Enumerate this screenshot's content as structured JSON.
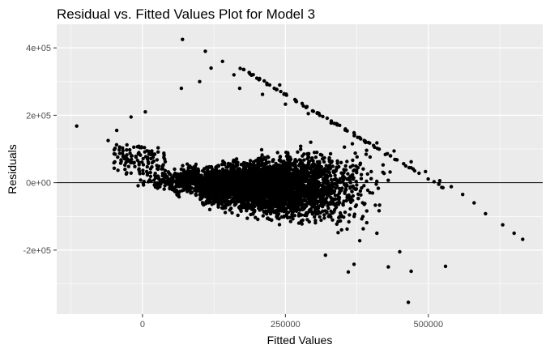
{
  "chart_data": {
    "type": "scatter",
    "title": "Residual vs. Fitted Values Plot for Model 3",
    "xlabel": "Fitted Values",
    "ylabel": "Residuals",
    "xlim": [
      -150000,
      700000
    ],
    "ylim": [
      -390000,
      470000
    ],
    "x_ticks": [
      0,
      250000,
      500000
    ],
    "x_tick_labels": [
      "0",
      "250000",
      "500000"
    ],
    "y_ticks": [
      -200000,
      0,
      200000,
      400000
    ],
    "y_tick_labels": [
      "-2e+05",
      "0e+00",
      "2e+05",
      "4e+05"
    ],
    "reference_line": {
      "y": 0
    },
    "grid": true,
    "background": "#ebebeb",
    "point_color": "#000000",
    "boundary_points": [
      [
        170000,
        280000
      ],
      [
        210000,
        262000
      ],
      [
        250000,
        233000
      ],
      [
        290000,
        205000
      ],
      [
        330000,
        177000
      ],
      [
        370000,
        148000
      ],
      [
        410000,
        118000
      ],
      [
        440000,
        94000
      ],
      [
        470000,
        62000
      ],
      [
        495000,
        33000
      ],
      [
        520000,
        6000
      ],
      [
        540000,
        -12000
      ],
      [
        560000,
        -35000
      ],
      [
        580000,
        -60000
      ],
      [
        600000,
        -92000
      ],
      [
        630000,
        -125000
      ],
      [
        650000,
        -150000
      ],
      [
        665000,
        -168000
      ]
    ],
    "extreme_points": [
      [
        -115000,
        168000
      ],
      [
        -60000,
        125000
      ],
      [
        -45000,
        155000
      ],
      [
        -20000,
        195000
      ],
      [
        5000,
        210000
      ],
      [
        70000,
        425000
      ],
      [
        68000,
        280000
      ],
      [
        110000,
        390000
      ],
      [
        140000,
        360000
      ],
      [
        120000,
        340000
      ],
      [
        160000,
        320000
      ],
      [
        200000,
        310000
      ],
      [
        240000,
        290000
      ],
      [
        320000,
        -215000
      ],
      [
        370000,
        -242000
      ],
      [
        360000,
        -265000
      ],
      [
        430000,
        -250000
      ],
      [
        450000,
        -205000
      ],
      [
        470000,
        -263000
      ],
      [
        530000,
        -248000
      ],
      [
        465000,
        -355000
      ],
      [
        380000,
        -172000
      ],
      [
        410000,
        -150000
      ],
      [
        100000,
        300000
      ]
    ],
    "cloud": {
      "fitted_range": [
        0,
        450000
      ],
      "center_fitted": 210000,
      "center_residual": -10000,
      "point_count": 4200
    }
  }
}
